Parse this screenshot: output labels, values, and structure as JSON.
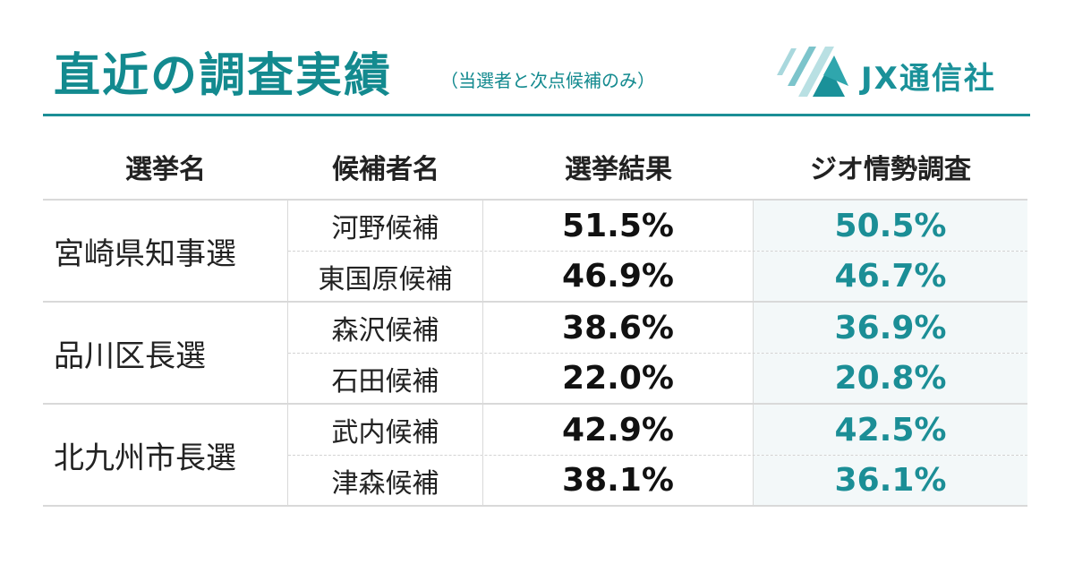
{
  "header": {
    "title": "直近の調査実績",
    "subtitle": "（当選者と次点候補のみ）",
    "logo_text": "JX通信社"
  },
  "colors": {
    "accent": "#138a8f",
    "survey_background": "#f3f8f9",
    "logo_stripes": "#9fd3d8"
  },
  "table": {
    "headers": [
      "選挙名",
      "候補者名",
      "選挙結果",
      "ジオ情勢調査"
    ],
    "groups": [
      {
        "election": "宮崎県知事選",
        "rows": [
          {
            "candidate": "河野候補",
            "result": "51.5%",
            "survey": "50.5%"
          },
          {
            "candidate": "東国原候補",
            "result": "46.9%",
            "survey": "46.7%"
          }
        ]
      },
      {
        "election": "品川区長選",
        "rows": [
          {
            "candidate": "森沢候補",
            "result": "38.6%",
            "survey": "36.9%"
          },
          {
            "candidate": "石田候補",
            "result": "22.0%",
            "survey": "20.8%"
          }
        ]
      },
      {
        "election": "北九州市長選",
        "rows": [
          {
            "candidate": "武内候補",
            "result": "42.9%",
            "survey": "42.5%"
          },
          {
            "candidate": "津森候補",
            "result": "38.1%",
            "survey": "36.1%"
          }
        ]
      }
    ]
  }
}
